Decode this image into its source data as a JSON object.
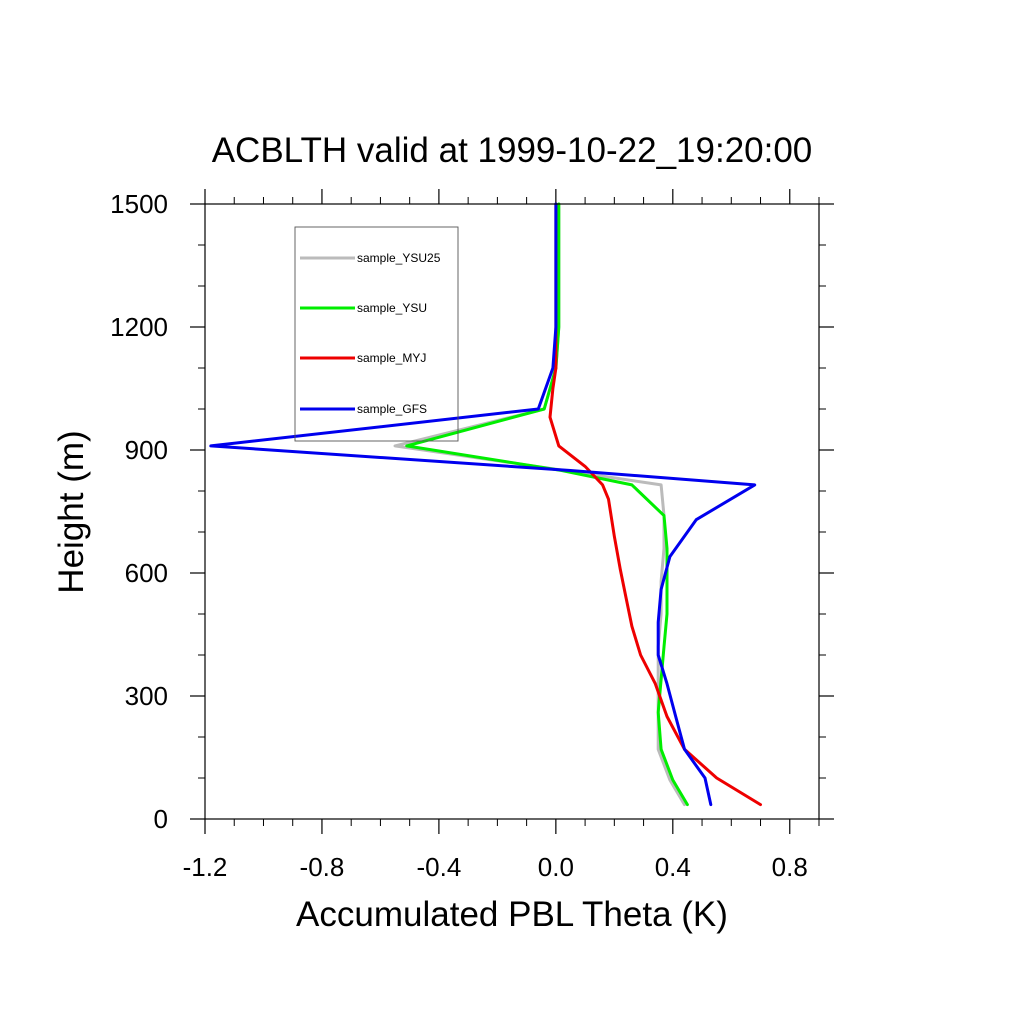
{
  "chart_data": {
    "type": "line",
    "title": "ACBLTH valid at 1999-10-22_19:20:00",
    "xlabel": "Accumulated PBL Theta (K)",
    "ylabel": "Height (m)",
    "xlim": [
      -1.2,
      0.9
    ],
    "ylim": [
      0,
      1500
    ],
    "x_ticks": [
      -1.2,
      -0.8,
      -0.4,
      0.0,
      0.4,
      0.8
    ],
    "x_tick_labels": [
      "-1.2",
      "-0.8",
      "-0.4",
      "0.0",
      "0.4",
      "0.8"
    ],
    "y_ticks": [
      0,
      300,
      600,
      900,
      1200,
      1500
    ],
    "y_tick_labels": [
      "0",
      "300",
      "600",
      "900",
      "1200",
      "1500"
    ],
    "grid": false,
    "legend_position": "top-left",
    "series": [
      {
        "name": "sample_YSU25",
        "color": "#bbbbbb",
        "points": [
          [
            0.44,
            35
          ],
          [
            0.39,
            95
          ],
          [
            0.35,
            170
          ],
          [
            0.35,
            260
          ],
          [
            0.35,
            340
          ],
          [
            0.35,
            420
          ],
          [
            0.36,
            500
          ],
          [
            0.36,
            580
          ],
          [
            0.37,
            660
          ],
          [
            0.37,
            740
          ],
          [
            0.36,
            815
          ],
          [
            0.03,
            850
          ],
          [
            -0.55,
            910
          ],
          [
            -0.04,
            1000
          ],
          [
            0.0,
            1100
          ],
          [
            0.01,
            1200
          ],
          [
            0.01,
            1500
          ]
        ]
      },
      {
        "name": "sample_YSU",
        "color": "#00ee00",
        "points": [
          [
            0.45,
            35
          ],
          [
            0.4,
            95
          ],
          [
            0.36,
            170
          ],
          [
            0.35,
            260
          ],
          [
            0.36,
            340
          ],
          [
            0.37,
            420
          ],
          [
            0.38,
            500
          ],
          [
            0.38,
            580
          ],
          [
            0.38,
            660
          ],
          [
            0.37,
            740
          ],
          [
            0.26,
            815
          ],
          [
            0.02,
            850
          ],
          [
            -0.51,
            910
          ],
          [
            -0.04,
            1000
          ],
          [
            0.0,
            1100
          ],
          [
            0.01,
            1200
          ],
          [
            0.01,
            1500
          ]
        ]
      },
      {
        "name": "sample_MYJ",
        "color": "#ee0000",
        "points": [
          [
            0.7,
            35
          ],
          [
            0.55,
            100
          ],
          [
            0.44,
            170
          ],
          [
            0.38,
            250
          ],
          [
            0.34,
            330
          ],
          [
            0.29,
            400
          ],
          [
            0.26,
            470
          ],
          [
            0.24,
            540
          ],
          [
            0.22,
            610
          ],
          [
            0.2,
            690
          ],
          [
            0.18,
            780
          ],
          [
            0.16,
            815
          ],
          [
            0.1,
            860
          ],
          [
            0.01,
            910
          ],
          [
            -0.02,
            980
          ],
          [
            -0.01,
            1050
          ],
          [
            0.0,
            1100
          ],
          [
            0.0,
            1500
          ]
        ]
      },
      {
        "name": "sample_GFS",
        "color": "#0000ee",
        "points": [
          [
            0.53,
            35
          ],
          [
            0.51,
            100
          ],
          [
            0.44,
            170
          ],
          [
            0.41,
            250
          ],
          [
            0.38,
            330
          ],
          [
            0.35,
            400
          ],
          [
            0.35,
            480
          ],
          [
            0.36,
            560
          ],
          [
            0.39,
            640
          ],
          [
            0.48,
            730
          ],
          [
            0.68,
            815
          ],
          [
            0.05,
            850
          ],
          [
            -1.18,
            910
          ],
          [
            -0.06,
            1000
          ],
          [
            -0.01,
            1100
          ],
          [
            0.0,
            1200
          ],
          [
            0.0,
            1500
          ]
        ]
      }
    ]
  }
}
